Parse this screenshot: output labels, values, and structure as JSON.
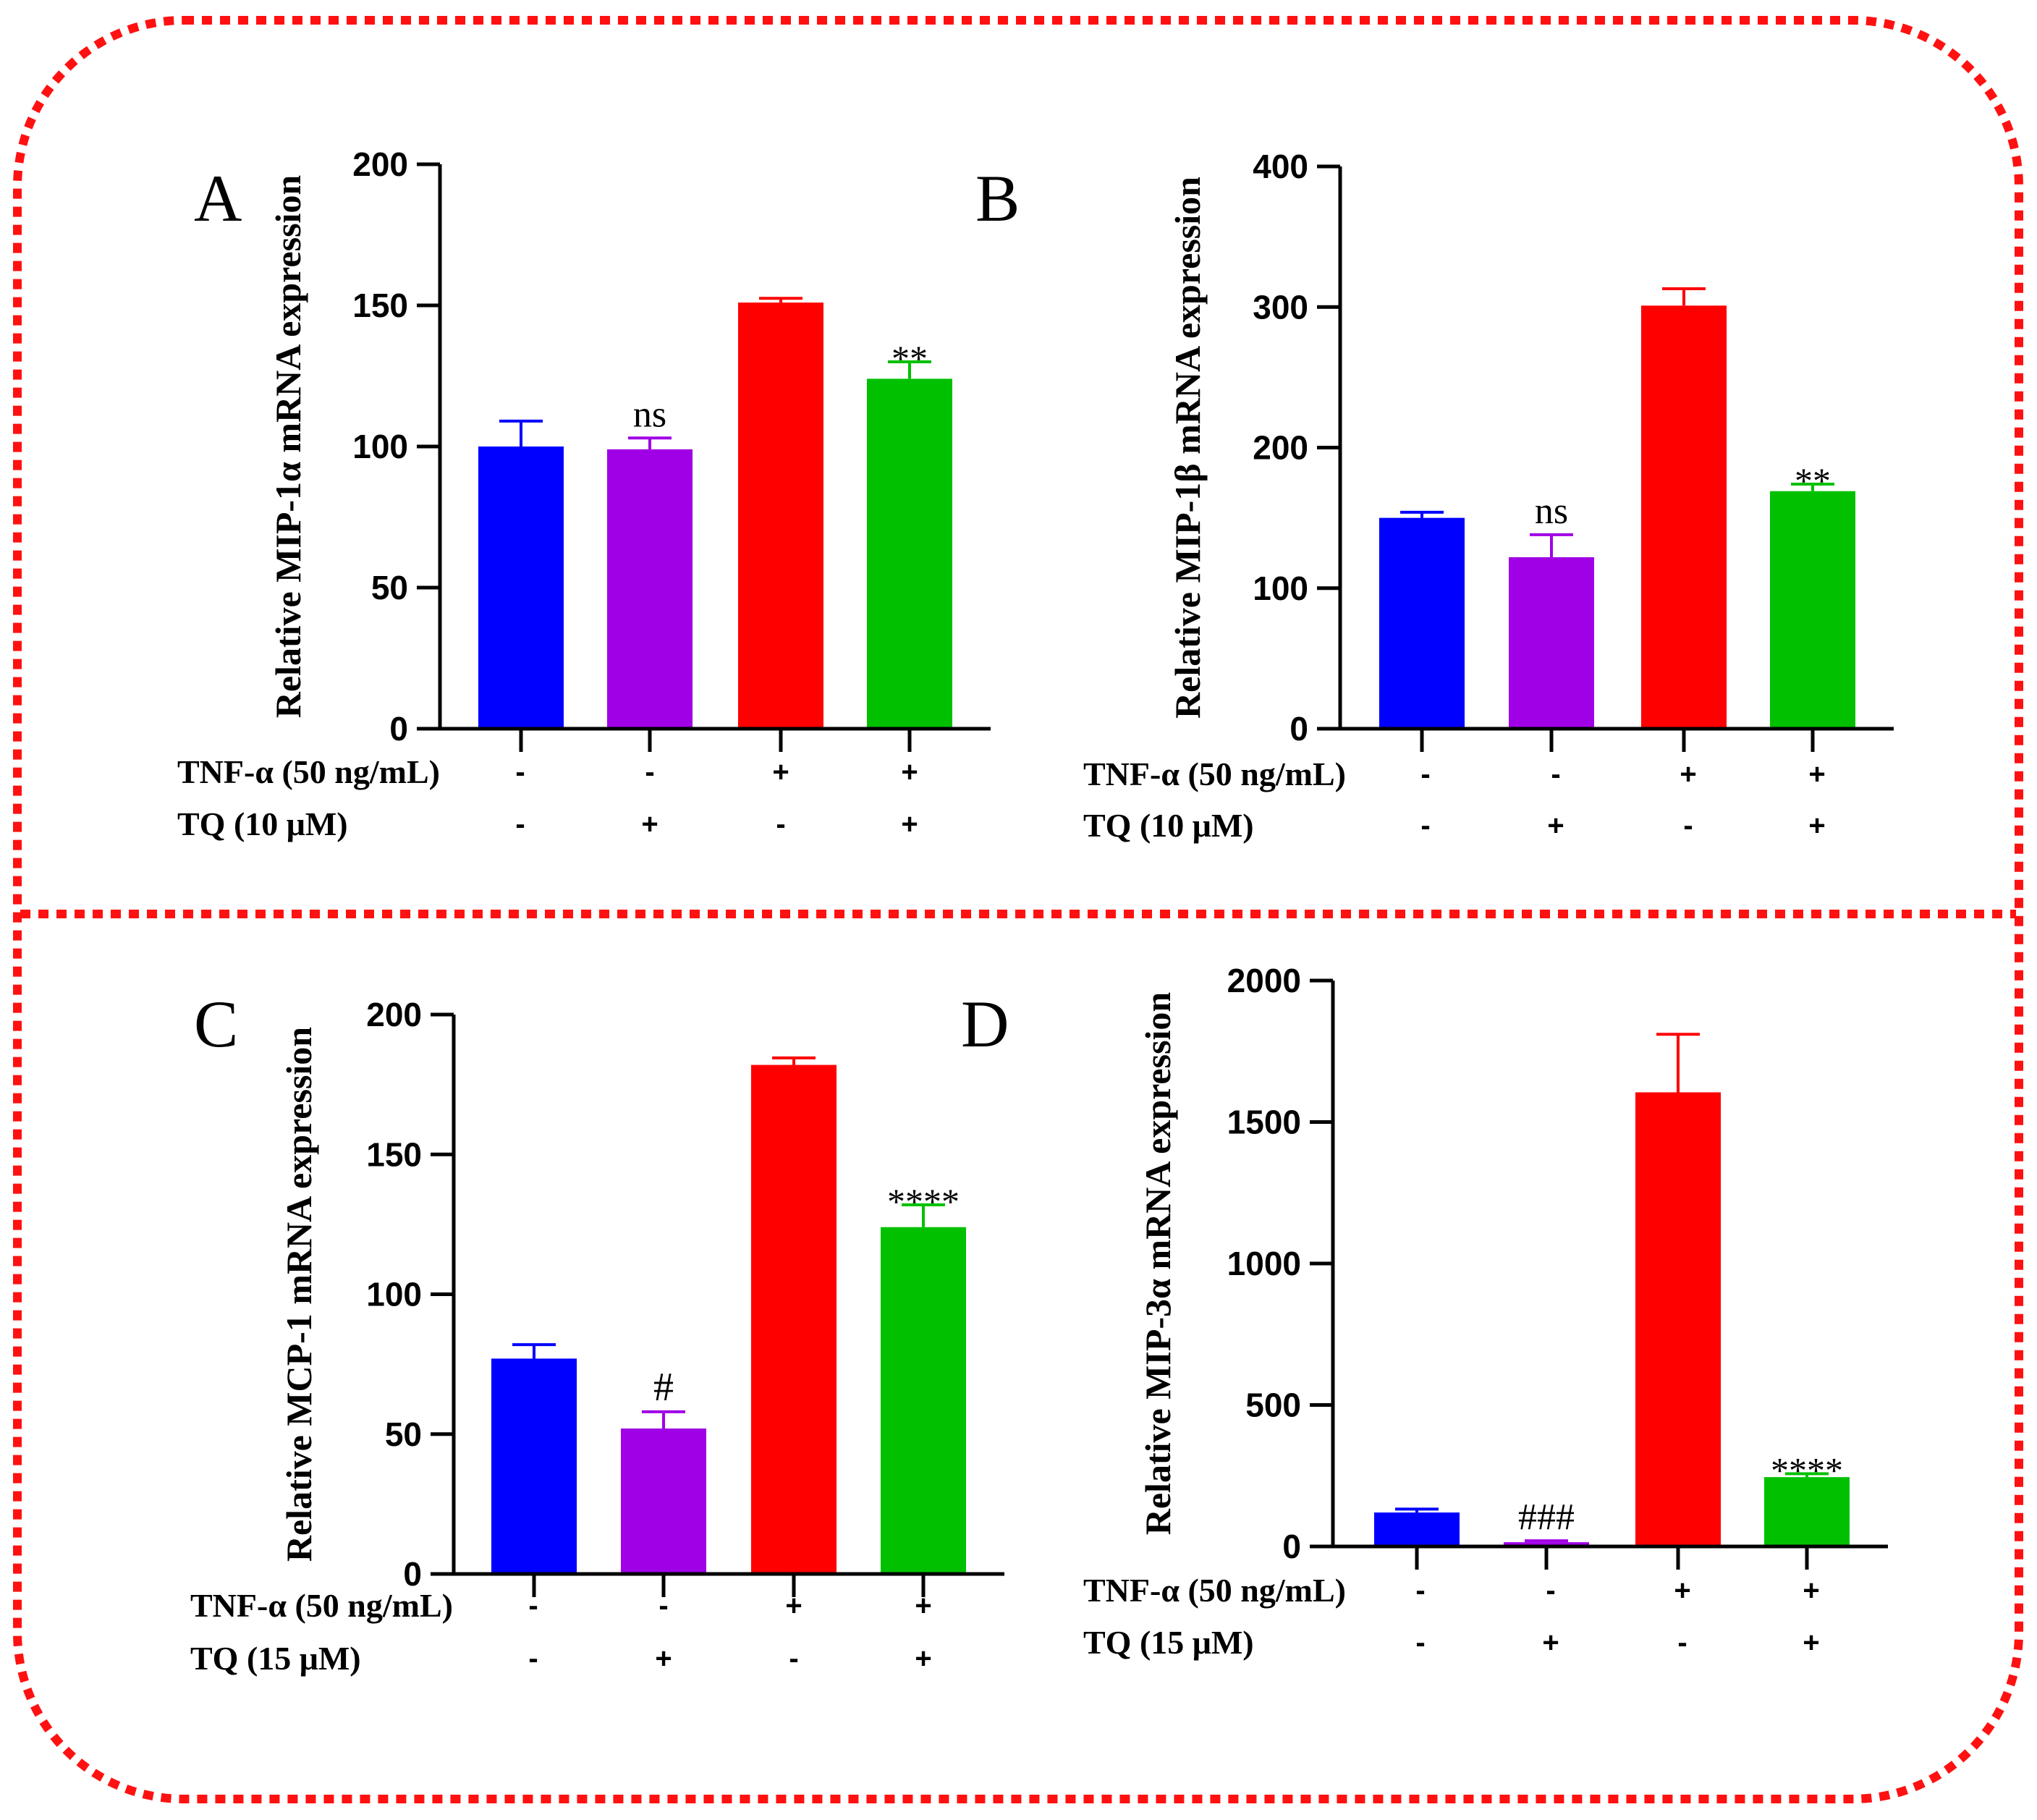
{
  "colors": {
    "blue": "#0000ff",
    "purple": "#a000e6",
    "red": "#ff0000",
    "green": "#00c000",
    "frame": "#ff1111"
  },
  "chart_data": [
    {
      "panel": "A",
      "type": "bar",
      "ylabel": "Relative MIP-1α mRNA expression",
      "ylim": [
        0,
        200
      ],
      "yticks": [
        "0",
        "50",
        "100",
        "150",
        "200"
      ],
      "values": [
        100,
        99,
        151,
        124
      ],
      "errors": [
        9,
        4,
        1.5,
        6
      ],
      "annotations": [
        "",
        "ns",
        "",
        "**"
      ],
      "treatments": [
        {
          "label": "TNF-α (50 ng/mL)",
          "signs": [
            "-",
            "-",
            "+",
            "+"
          ]
        },
        {
          "label": "TQ (10 μM)",
          "signs": [
            "-",
            "+",
            "-",
            "+"
          ]
        }
      ]
    },
    {
      "panel": "B",
      "type": "bar",
      "ylabel": "Relative MIP-1β mRNA expression",
      "ylim": [
        0,
        400
      ],
      "yticks": [
        "0",
        "100",
        "200",
        "300",
        "400"
      ],
      "values": [
        150,
        122,
        301,
        169
      ],
      "errors": [
        4,
        16,
        12,
        5
      ],
      "annotations": [
        "",
        "ns",
        "",
        "**"
      ],
      "treatments": [
        {
          "label": "TNF-α (50 ng/mL)",
          "signs": [
            "-",
            "-",
            "+",
            "+"
          ]
        },
        {
          "label": "TQ (10 μM)",
          "signs": [
            "-",
            "+",
            "-",
            "+"
          ]
        }
      ]
    },
    {
      "panel": "C",
      "type": "bar",
      "ylabel": "Relative MCP-1 mRNA expression",
      "ylim": [
        0,
        200
      ],
      "yticks": [
        "0",
        "50",
        "100",
        "150",
        "200"
      ],
      "values": [
        77,
        52,
        182,
        124
      ],
      "errors": [
        5,
        6,
        2.5,
        8
      ],
      "annotations": [
        "",
        "#",
        "",
        "****"
      ],
      "treatments": [
        {
          "label": "TNF-α (50 ng/mL)",
          "signs": [
            "-",
            "-",
            "+",
            "+"
          ]
        },
        {
          "label": "TQ (15 μM)",
          "signs": [
            "-",
            "+",
            "-",
            "+"
          ]
        }
      ]
    },
    {
      "panel": "D",
      "type": "bar",
      "ylabel": "Relative MIP-3α mRNA expression",
      "ylim": [
        0,
        2000
      ],
      "yticks": [
        "0",
        "500",
        "1000",
        "1500",
        "2000"
      ],
      "values": [
        120,
        15,
        1605,
        245
      ],
      "errors": [
        12,
        5,
        205,
        12
      ],
      "annotations": [
        "",
        "###",
        "",
        "****"
      ],
      "treatments": [
        {
          "label": "TNF-α (50 ng/mL)",
          "signs": [
            "-",
            "-",
            "+",
            "+"
          ]
        },
        {
          "label": "TQ (15 μM)",
          "signs": [
            "-",
            "+",
            "-",
            "+"
          ]
        }
      ]
    }
  ]
}
